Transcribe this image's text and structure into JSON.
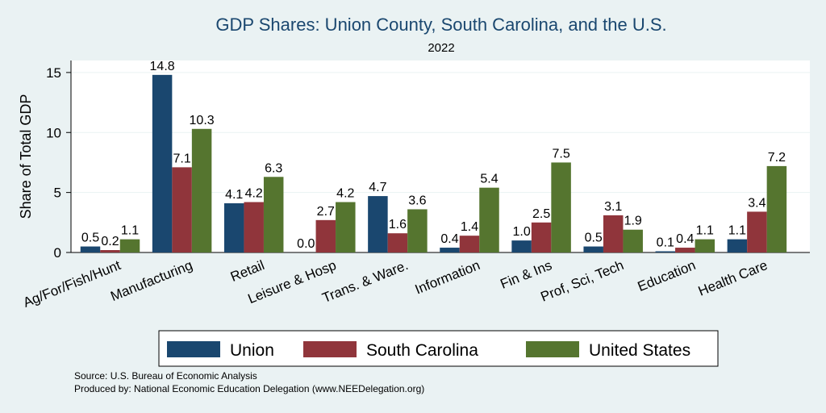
{
  "chart_data": {
    "type": "bar",
    "title": "GDP Shares: Union County, South Carolina, and the U.S.",
    "subtitle": "2022",
    "ylabel": "Share of Total GDP",
    "xlabel": "",
    "ylim": [
      0,
      16
    ],
    "yticks": [
      0,
      5,
      10,
      15
    ],
    "grid": true,
    "legend_position": "bottom",
    "categories": [
      "Ag/For/Fish/Hunt",
      "Manufacturing",
      "Retail",
      "Leisure & Hosp",
      "Trans. & Ware.",
      "Information",
      "Fin & Ins",
      "Prof, Sci, Tech",
      "Education",
      "Health Care"
    ],
    "series": [
      {
        "name": "Union",
        "color": "#1a476f",
        "values": [
          0.5,
          14.8,
          4.1,
          0.0,
          4.7,
          0.4,
          1.0,
          0.5,
          0.1,
          1.1
        ],
        "labels": [
          "0.5",
          "14.8",
          "4.1",
          "0.0",
          "4.7",
          "0.4",
          "1.0",
          "0.5",
          "0.1",
          "1.1"
        ]
      },
      {
        "name": "South Carolina",
        "color": "#90353b",
        "values": [
          0.2,
          7.1,
          4.2,
          2.7,
          1.6,
          1.4,
          2.5,
          3.1,
          0.4,
          3.4
        ],
        "labels": [
          "0.2",
          "7.1",
          "4.2",
          "2.7",
          "1.6",
          "1.4",
          "2.5",
          "3.1",
          "0.4",
          "3.4"
        ]
      },
      {
        "name": "United States",
        "color": "#55752f",
        "values": [
          1.1,
          10.3,
          6.3,
          4.2,
          3.6,
          5.4,
          7.5,
          1.9,
          1.1,
          7.2
        ],
        "labels": [
          "1.1",
          "10.3",
          "6.3",
          "4.2",
          "3.6",
          "5.4",
          "7.5",
          "1.9",
          "1.1",
          "7.2"
        ]
      }
    ]
  },
  "notes": {
    "source": "Source: U.S. Bureau of Economic Analysis",
    "produced": "Produced by: National Economic Education Delegation (www.NEEDelegation.org)"
  }
}
